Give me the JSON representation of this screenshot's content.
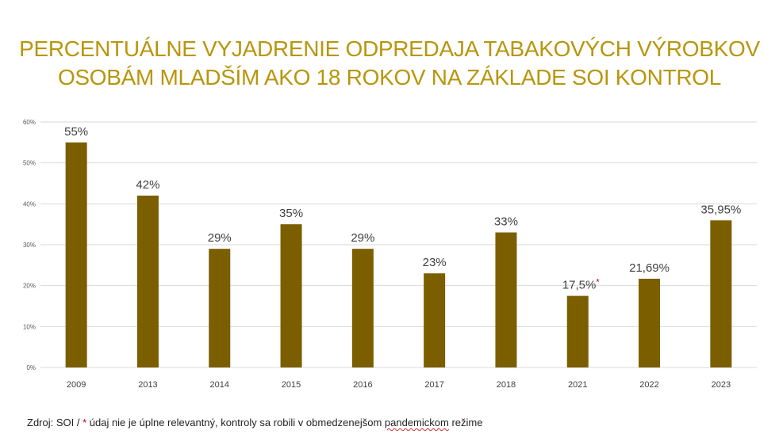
{
  "title_lines": [
    "PERCENTUÁLNE VYJADRENIE ODPREDAJA TABAKOVÝCH VÝROBKOV",
    "OSOBÁM MLADŠÍM AKO 18 ROKOV NA ZÁKLADE SOI KONTROL"
  ],
  "colors": {
    "bar": "#7B5E00",
    "title": "#B8960C",
    "gridline": "#D9D9D9",
    "asterisk": "#C00000"
  },
  "chart_data": {
    "type": "bar",
    "title": "PERCENTUÁLNE VYJADRENIE ODPREDAJA TABAKOVÝCH VÝROBKOV OSOBÁM MLADŠÍM AKO 18 ROKOV NA ZÁKLADE SOI KONTROL",
    "categories": [
      "2009",
      "2013",
      "2014",
      "2015",
      "2016",
      "2017",
      "2018",
      "2021",
      "2022",
      "2023"
    ],
    "values": [
      55,
      42,
      29,
      35,
      29,
      23,
      33,
      17.5,
      21.69,
      35.95
    ],
    "data_labels": [
      "55%",
      "42%",
      "29%",
      "35%",
      "29%",
      "23%",
      "33%",
      "17,5%",
      "21,69%",
      "35,95%"
    ],
    "label_marks": [
      "",
      "",
      "",
      "",
      "",
      "",
      "",
      "*",
      "",
      ""
    ],
    "ylim": [
      0,
      60
    ],
    "yticks": [
      0,
      10,
      20,
      30,
      40,
      50,
      60
    ],
    "ytick_labels": [
      "0%",
      "10%",
      "20%",
      "30%",
      "40%",
      "50%",
      "60%"
    ],
    "xlabel": "",
    "ylabel": "",
    "grid": true,
    "legend": "none"
  },
  "footer": {
    "prefix": "Zdroj: SOI / ",
    "star": "*",
    "text_before": " údaj nie je úplne  relevantný, kontroly  sa robili v obmedzenejšom  ",
    "misspelled": "pandemickom",
    "text_after": "  režime"
  }
}
